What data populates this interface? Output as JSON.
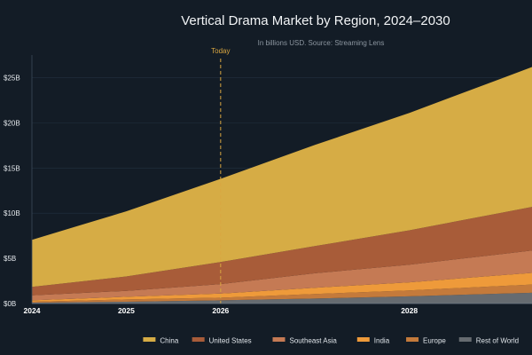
{
  "chart_data": {
    "type": "area",
    "stacked": true,
    "title": "Vertical Drama Market by Region, 2024–2030",
    "subtitle": "In billions USD. Source: Streaming Lens",
    "x": [
      2024,
      2025,
      2026,
      2027,
      2028,
      2029
    ],
    "x_ticks": [
      "2024",
      "2025",
      "2026",
      "2028"
    ],
    "xlim": [
      2024,
      2029.3
    ],
    "ylim": [
      0,
      27.5
    ],
    "y_ticks": [
      "$0B",
      "$5B",
      "$10B",
      "$15B",
      "$20B",
      "$25B"
    ],
    "y_tick_values": [
      0,
      5,
      10,
      15,
      20,
      25
    ],
    "grid": "horizontal",
    "legend_position": "bottom",
    "annotation": {
      "label": "Today",
      "x": 2026,
      "color": "#d9a640"
    },
    "series": [
      {
        "name": "Rest of World",
        "color": "#666b70",
        "values": [
          0.1,
          0.2,
          0.35,
          0.55,
          0.8,
          1.1
        ]
      },
      {
        "name": "Europe",
        "color": "#c47a3b",
        "values": [
          0.1,
          0.25,
          0.3,
          0.5,
          0.65,
          0.85
        ]
      },
      {
        "name": "India",
        "color": "#ee9a3a",
        "values": [
          0.15,
          0.3,
          0.45,
          0.7,
          0.9,
          1.2
        ]
      },
      {
        "name": "Southeast Asia",
        "color": "#c57a54",
        "values": [
          0.55,
          0.65,
          1.05,
          1.6,
          1.95,
          2.35
        ]
      },
      {
        "name": "United States",
        "color": "#a85c39",
        "values": [
          0.95,
          1.6,
          2.45,
          3.0,
          3.8,
          4.6
        ]
      },
      {
        "name": "China",
        "color": "#d6ac45",
        "values": [
          5.2,
          7.2,
          9.2,
          11.2,
          13.0,
          14.9
        ]
      }
    ],
    "legend_order": [
      "China",
      "United States",
      "Southeast Asia",
      "India",
      "Europe",
      "Rest of World"
    ]
  }
}
